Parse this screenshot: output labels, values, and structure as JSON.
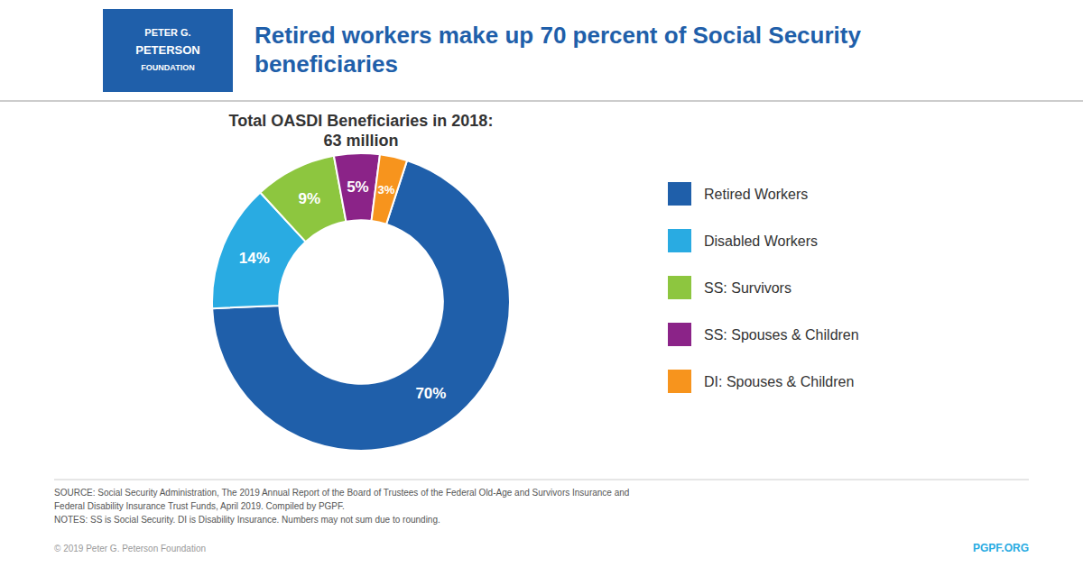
{
  "chart_data": {
    "type": "pie",
    "title": "Retired workers make up 70 percent of Social Security\nbeneficiaries",
    "subtitle": "Total OASDI Beneficiaries in 2018:\n63 million",
    "categories": [
      "Retired Workers",
      "Disabled Workers",
      "SS: Survivors",
      "SS: Spouses & Children",
      "DI: Spouses & Children"
    ],
    "values": [
      70,
      14,
      9,
      5,
      3
    ],
    "value_labels": [
      "70%",
      "14%",
      "9%",
      "5%",
      "3%"
    ],
    "colors": [
      "#1f5faa",
      "#29abe2",
      "#8dc63f",
      "#8b2388",
      "#f7941d"
    ],
    "data_labels": true,
    "legend": "right",
    "annotations": [
      "PETER G.",
      "PETERSON",
      "FOUNDATION",
      "SOURCE: Social Security Administration, The 2019 Annual Report of the Board of Trustees of the Federal Old-Age and Survivors Insurance and",
      "Federal Disability Insurance Trust Funds, April 2019. Compiled by PGPF.",
      "NOTES: SS is Social Security. DI is Disability Insurance. Numbers may not sum due to rounding.",
      "© 2019 Peter G. Peterson Foundation",
      "PGPF.ORG"
    ]
  }
}
